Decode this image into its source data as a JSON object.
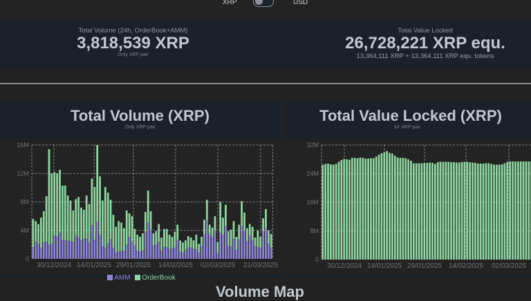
{
  "toggle": {
    "left_label": "XRP",
    "right_label": "USD",
    "selected": "XRP"
  },
  "stats": {
    "volume": {
      "label": "Total Volume (24h, OrderBook+AMM)",
      "value": "3,818,539 XRP",
      "sub": "Only XRP pair"
    },
    "tvl": {
      "label": "Total Value Locked",
      "value": "26,728,221 XRP equ.",
      "sub": "13,364,111 XRP + 13,364,111 XRP equ. tokens"
    }
  },
  "colors": {
    "amm": "#8e86d8",
    "orderbook": "#8fd6a0",
    "tvl": "#8fd6a0",
    "panel": "#1b2129",
    "plot": "#232323"
  },
  "next_section_title": "Volume Map",
  "chart_data": [
    {
      "type": "bar",
      "stacked": true,
      "title": "Total Volume (XRP)",
      "subtitle": "Only XRP pair",
      "ylim": [
        0,
        16000000
      ],
      "yticks": [
        "0",
        "4M",
        "8M",
        "12M",
        "16M"
      ],
      "xticks": [
        "30/12/2024",
        "14/01/2025",
        "29/01/2025",
        "14/02/2025",
        "02/03/2025",
        "21/03/2025"
      ],
      "grid": true,
      "legend": "bottom",
      "units": "M",
      "series": [
        {
          "name": "AMM",
          "values": [
            1.7,
            2.4,
            2.1,
            1.6,
            2.3,
            2.4,
            2.0,
            2.1,
            3.3,
            3.2,
            3.7,
            2.6,
            2.6,
            2.6,
            2.5,
            2.4,
            3.3,
            3.0,
            2.6,
            2.8,
            2.9,
            2.3,
            4.8,
            2.7,
            5.2,
            3.4,
            1.8,
            1.6,
            2.2,
            2.8,
            1.6,
            0.9,
            1.0,
            1.1,
            1.1,
            2.0,
            3.1,
            2.4,
            1.9,
            1.1,
            1.0,
            1.2,
            3.8,
            5.1,
            4.1,
            1.9,
            2.0,
            2.4,
            1.2,
            1.7,
            1.7,
            1.4,
            1.5,
            1.6,
            2.7,
            1.0,
            0.9,
            1.3,
            1.6,
            1.6,
            1.4,
            1.4,
            0.9,
            1.8,
            3.5,
            5.5,
            3.4,
            3.1,
            4.0,
            0.8,
            3.7,
            3.4,
            4.6,
            1.8,
            1.8,
            2.8,
            1.3,
            2.7,
            4.6,
            4.0,
            2.5,
            3.3,
            2.6,
            1.8,
            1.7,
            1.6,
            3.9,
            4.3,
            2.1,
            1.6
          ]
        },
        {
          "name": "OrderBook",
          "values": [
            3.9,
            2.9,
            2.8,
            4.2,
            4.4,
            6.4,
            13.4,
            9.9,
            8.9,
            8.8,
            8.8,
            7.7,
            7.7,
            6.3,
            5.7,
            4.4,
            5.1,
            5.7,
            4.6,
            4.1,
            6.0,
            5.4,
            6.5,
            7.4,
            10.8,
            8.2,
            6.4,
            8.5,
            7.1,
            5.5,
            4.6,
            3.6,
            4.3,
            4.0,
            3.2,
            4.8,
            3.3,
            3.6,
            2.3,
            2.3,
            2.1,
            2.4,
            2.8,
            4.5,
            2.6,
            1.7,
            1.9,
            2.5,
            1.8,
            2.5,
            2.5,
            2.0,
            1.6,
            2.2,
            2.1,
            1.6,
            1.4,
            1.3,
            1.6,
            1.4,
            1.2,
            2.0,
            1.2,
            1.3,
            2.0,
            2.8,
            1.4,
            1.3,
            2.0,
            1.6,
            4.3,
            2.4,
            3.0,
            2.1,
            2.3,
            2.5,
            1.8,
            2.1,
            3.5,
            2.5,
            1.8,
            1.6,
            1.9,
            1.2,
            2.3,
            1.5,
            1.8,
            2.7,
            1.9,
            1.9
          ]
        }
      ]
    },
    {
      "type": "bar",
      "title": "Total Value Locked (XRP)",
      "subtitle": "for XRP pair",
      "ylim": [
        0,
        32000000
      ],
      "yticks": [
        "0",
        "8M",
        "16M",
        "24M",
        "32M"
      ],
      "xticks": [
        "30/12/2024",
        "14/01/2025",
        "29/01/2025",
        "14/02/2025",
        "02/03/2025"
      ],
      "grid": true,
      "units": "M",
      "values": [
        26.5,
        26.7,
        26.8,
        26.6,
        26.5,
        26.7,
        27.3,
        27.8,
        28.1,
        28.0,
        27.9,
        28.4,
        28.4,
        28.3,
        28.5,
        28.4,
        28.2,
        28.2,
        28.3,
        28.3,
        28.8,
        29.3,
        29.7,
        30.0,
        30.3,
        29.8,
        29.6,
        29.0,
        28.5,
        28.4,
        28.4,
        28.3,
        28.0,
        27.6,
        26.9,
        26.9,
        26.9,
        26.9,
        27.0,
        27.0,
        27.1,
        27.0,
        26.7,
        27.2,
        27.3,
        27.3,
        27.3,
        27.3,
        27.2,
        27.2,
        27.1,
        27.1,
        27.2,
        27.3,
        27.3,
        27.2,
        27.1,
        27.0,
        26.8,
        26.8,
        26.8,
        26.9,
        26.9,
        26.7,
        26.5,
        26.5,
        26.5,
        26.6,
        26.9,
        27.3,
        27.4,
        27.4,
        27.4,
        27.4,
        27.4,
        27.4,
        27.4,
        27.4,
        27.4,
        27.3,
        27.3,
        27.3,
        27.3,
        27.3,
        27.3,
        27.3,
        27.3,
        27.3,
        27.3,
        27.3
      ]
    }
  ]
}
